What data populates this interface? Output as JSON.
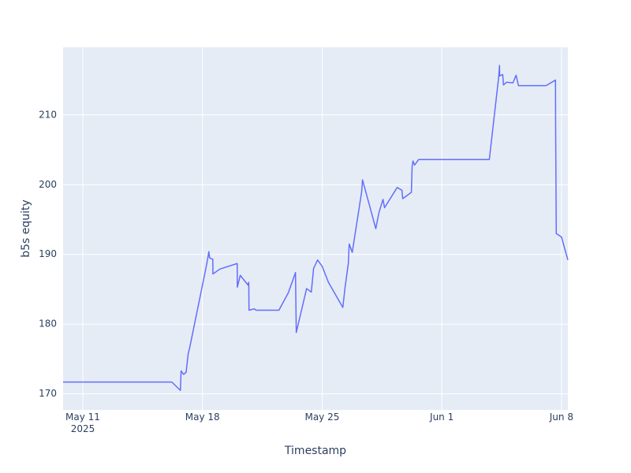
{
  "chart_data": {
    "type": "line",
    "x_label": "Timestamp",
    "y_label": "b5s equity",
    "x": [
      "2025-05-09T20:20",
      "2025-05-16T05:00",
      "2025-05-16T17:00",
      "2025-05-16T18:00",
      "2025-05-16T21:30",
      "2025-05-17T01:00",
      "2025-05-17T04:00",
      "2025-05-17T06:00",
      "2025-05-18T05:45",
      "2025-05-18T09:00",
      "2025-05-18T10:00",
      "2025-05-18T14:30",
      "2025-05-18T14:40",
      "2025-05-19T00:30",
      "2025-05-20T00:45",
      "2025-05-20T00:55",
      "2025-05-20T05:00",
      "2025-05-20T16:00",
      "2025-05-20T17:00",
      "2025-05-20T17:20",
      "2025-05-21T01:00",
      "2025-05-21T03:00",
      "2025-05-22T11:20",
      "2025-05-23T00:30",
      "2025-05-23T10:35",
      "2025-05-23T11:40",
      "2025-05-24T02:10",
      "2025-05-24T08:45",
      "2025-05-24T12:00",
      "2025-05-24T17:35",
      "2025-05-25T00:00",
      "2025-05-25T08:50",
      "2025-05-26T05:00",
      "2025-05-26T08:20",
      "2025-05-26T12:45",
      "2025-05-26T14:00",
      "2025-05-26T18:15",
      "2025-05-27T07:30",
      "2025-05-27T08:40",
      "2025-05-28T03:20",
      "2025-05-28T07:45",
      "2025-05-28T13:25",
      "2025-05-28T15:35",
      "2025-05-29T09:20",
      "2025-05-29T16:00",
      "2025-05-29T17:05",
      "2025-05-30T05:15",
      "2025-05-30T06:20",
      "2025-05-30T07:30",
      "2025-05-30T09:45",
      "2025-05-30T15:20",
      "2025-06-03T18:40",
      "2025-06-04T07:55",
      "2025-06-04T09:00",
      "2025-06-04T09:10",
      "2025-06-04T13:30",
      "2025-06-04T14:35",
      "2025-06-04T19:00",
      "2025-06-05T03:50",
      "2025-06-05T08:15",
      "2025-06-05T11:35",
      "2025-06-07T02:20",
      "2025-06-07T15:35",
      "2025-06-07T15:45",
      "2025-06-07T16:40",
      "2025-06-08T00:00",
      "2025-06-08T09:00"
    ],
    "series": [
      {
        "name": "b5s equity",
        "color": "#636efa",
        "values": [
          171.7,
          171.7,
          170.5,
          173.3,
          172.8,
          173.1,
          175.8,
          176.6,
          188.5,
          190.4,
          189.5,
          189.3,
          187.2,
          187.9,
          188.7,
          185.3,
          187.0,
          185.6,
          186.0,
          182.0,
          182.2,
          182.0,
          182.0,
          184.5,
          187.4,
          178.8,
          185.1,
          184.6,
          188.0,
          189.2,
          188.3,
          186.0,
          182.4,
          185.4,
          188.7,
          191.5,
          190.3,
          199.0,
          200.7,
          193.7,
          196.0,
          197.9,
          196.7,
          199.6,
          199.2,
          198.0,
          198.9,
          202.6,
          203.4,
          202.8,
          203.6,
          203.6,
          215.5,
          217.1,
          215.6,
          215.8,
          214.3,
          214.7,
          214.6,
          215.7,
          214.2,
          214.2,
          215.0,
          209.0,
          193.0,
          192.5,
          189.2
        ]
      }
    ],
    "xlim": [
      "2025-05-09T20:20",
      "2025-06-08T09:00"
    ],
    "xticks": [
      {
        "value": "2025-05-11T00:00",
        "label": "May 11\n2025"
      },
      {
        "value": "2025-05-18T00:00",
        "label": "May 18"
      },
      {
        "value": "2025-05-25T00:00",
        "label": "May 25"
      },
      {
        "value": "2025-06-01T00:00",
        "label": "Jun 1"
      },
      {
        "value": "2025-06-08T00:00",
        "label": "Jun 8"
      }
    ],
    "ylim": [
      167.7,
      219.7
    ],
    "yticks": [
      170,
      180,
      190,
      200,
      210
    ],
    "grid": true
  }
}
